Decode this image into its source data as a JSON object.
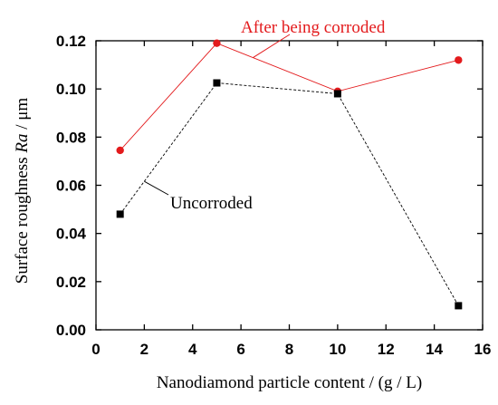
{
  "chart_data": {
    "type": "line",
    "xlabel": "Nanodiamond particle content / (g / L)",
    "ylabel_main": "Surface roughness ",
    "ylabel_var": "Ra",
    "ylabel_unit": " / μm",
    "xlim": [
      0,
      16
    ],
    "ylim": [
      0,
      0.12
    ],
    "x_ticks": [
      0,
      2,
      4,
      6,
      8,
      10,
      12,
      14,
      16
    ],
    "x_tick_labels": [
      "0",
      "2",
      "4",
      "6",
      "8",
      "10",
      "12",
      "14",
      "16"
    ],
    "y_ticks": [
      0,
      0.02,
      0.04,
      0.06,
      0.08,
      0.1,
      0.12
    ],
    "y_tick_labels": [
      "0.00",
      "0.02",
      "0.04",
      "0.06",
      "0.08",
      "0.10",
      "0.12"
    ],
    "grid": false,
    "series": [
      {
        "name": "After being corroded",
        "color": "#e31a1c",
        "marker": "circle",
        "line_style": "solid",
        "x": [
          1,
          5,
          10,
          15
        ],
        "y": [
          0.0745,
          0.119,
          0.099,
          0.112
        ]
      },
      {
        "name": "Uncorroded",
        "color": "#000000",
        "marker": "square",
        "line_style": "dashed",
        "x": [
          1,
          5,
          10,
          15
        ],
        "y": [
          0.048,
          0.1025,
          0.098,
          0.01
        ]
      }
    ],
    "annotations": [
      {
        "text": "After being corroded",
        "color": "#e31a1c",
        "series": 0
      },
      {
        "text": "Uncorroded",
        "color": "#000000",
        "series": 1
      }
    ]
  }
}
